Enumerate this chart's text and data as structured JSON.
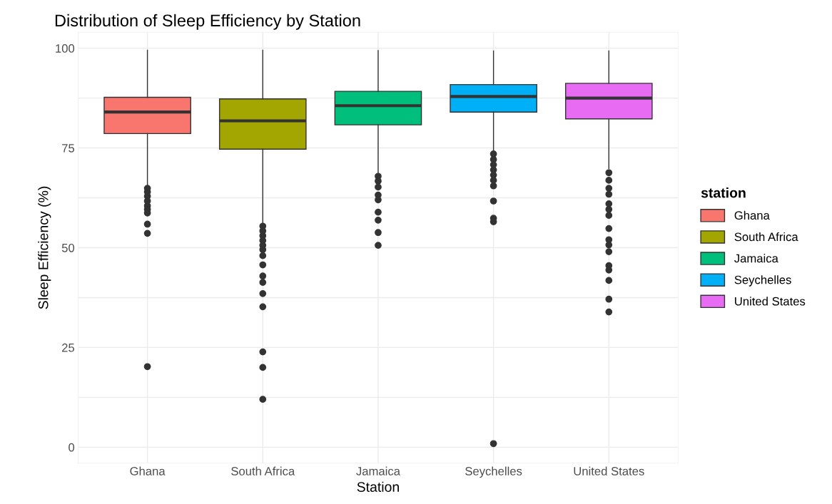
{
  "chart_data": {
    "type": "box",
    "title": "Distribution of Sleep Efficiency by Station",
    "xlabel": "Station",
    "ylabel": "Sleep Efficiency (%)",
    "legend_title": "station",
    "legend": "right",
    "categories": [
      "Ghana",
      "South Africa",
      "Jamaica",
      "Seychelles",
      "United States"
    ],
    "series": [
      {
        "name": "Ghana",
        "color": "#f8766d",
        "boxes": [
          {
            "low": 65.7,
            "q1": 78.6,
            "median": 84.0,
            "q3": 87.7,
            "high": 99.5,
            "outliers": [
              64.9,
              64.0,
              62.9,
              61.7,
              60.5,
              59.6,
              58.7,
              55.9,
              53.6,
              20.2
            ]
          },
          null,
          null,
          null,
          null
        ]
      },
      {
        "name": "South Africa",
        "color": "#a3a500",
        "boxes": [
          null,
          {
            "low": 56.3,
            "q1": 74.7,
            "median": 81.8,
            "q3": 87.3,
            "high": 99.5,
            "outliers": [
              55.4,
              54.2,
              53.0,
              51.8,
              50.6,
              49.5,
              48.0,
              45.7,
              42.9,
              41.3,
              38.5,
              35.2,
              23.9,
              20.0,
              12.0
            ]
          },
          null,
          null,
          null
        ]
      },
      {
        "name": "Jamaica",
        "color": "#00bf7d",
        "boxes": [
          null,
          null,
          {
            "low": 68.8,
            "q1": 80.8,
            "median": 85.6,
            "q3": 89.2,
            "high": 99.4,
            "outliers": [
              67.9,
              66.7,
              65.2,
              63.2,
              62.0,
              58.9,
              56.9,
              53.8,
              50.6
            ]
          },
          null,
          null
        ]
      },
      {
        "name": "Seychelles",
        "color": "#00b0f6",
        "boxes": [
          null,
          null,
          null,
          {
            "low": 74.5,
            "q1": 84.0,
            "median": 87.9,
            "q3": 90.9,
            "high": 99.3,
            "outliers": [
              73.5,
              72.1,
              70.8,
              69.5,
              68.2,
              66.9,
              65.5,
              61.7,
              57.4,
              56.5,
              0.9
            ]
          },
          null
        ]
      },
      {
        "name": "United States",
        "color": "#e76bf3",
        "boxes": [
          null,
          null,
          null,
          null,
          {
            "low": 69.8,
            "q1": 82.3,
            "median": 87.5,
            "q3": 91.2,
            "high": 99.3,
            "outliers": [
              68.8,
              66.9,
              64.9,
              63.4,
              61.0,
              59.6,
              58.1,
              54.8,
              52.0,
              50.7,
              49.0,
              45.5,
              44.4,
              41.8,
              37.1,
              33.9
            ]
          }
        ]
      }
    ],
    "ylim": [
      -4,
      104
    ],
    "yticks": [
      0,
      {
        "value": 12.5,
        "label": null
      },
      25,
      {
        "value": 37.5,
        "label": null
      },
      50,
      {
        "value": 62.5,
        "label": null
      },
      75,
      {
        "value": 87.5,
        "label": null
      },
      100
    ],
    "grid": true
  }
}
